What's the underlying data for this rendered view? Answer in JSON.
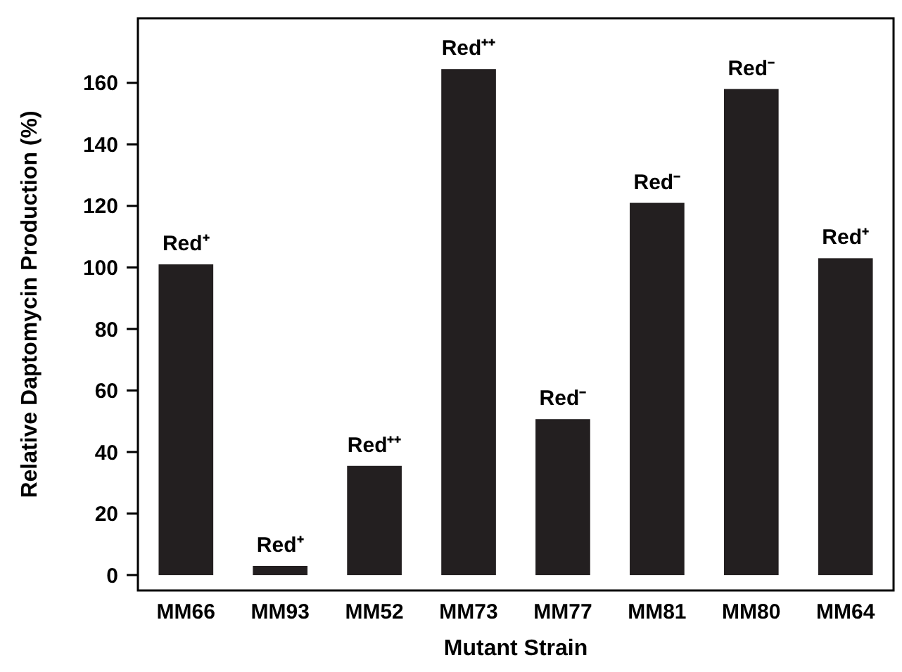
{
  "chart_data": {
    "type": "bar",
    "xlabel": "Mutant Strain",
    "ylabel": "Relative Daptomycin Production (%)",
    "categories": [
      "MM66",
      "MM93",
      "MM52",
      "MM73",
      "MM77",
      "MM81",
      "MM80",
      "MM64"
    ],
    "values": [
      101,
      3,
      35.5,
      164.5,
      50.7,
      121,
      158,
      103
    ],
    "color": "#231f20",
    "ylim": [
      -5,
      181
    ],
    "yticks": [
      0,
      20,
      40,
      60,
      80,
      100,
      120,
      140,
      160
    ],
    "grid": false,
    "annotations": [
      {
        "text": "Red⁺",
        "x": "MM66",
        "y": 101
      },
      {
        "text": "Red⁺",
        "x": "MM93",
        "y": 3
      },
      {
        "text": "Red⁺⁺",
        "x": "MM52",
        "y": 35.5
      },
      {
        "text": "Red⁺⁺",
        "x": "MM73",
        "y": 164.5
      },
      {
        "text": "Red⁻",
        "x": "MM77",
        "y": 50.7
      },
      {
        "text": "Red⁻",
        "x": "MM81",
        "y": 121
      },
      {
        "text": "Red⁻",
        "x": "MM80",
        "y": 158
      },
      {
        "text": "Red⁺",
        "x": "MM64",
        "y": 103
      }
    ]
  }
}
